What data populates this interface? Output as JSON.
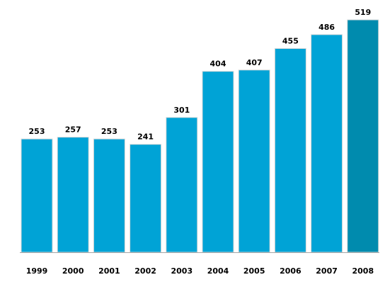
{
  "chart_data": {
    "type": "bar",
    "categories": [
      "1999",
      "2000",
      "2001",
      "2002",
      "2003",
      "2004",
      "2005",
      "2006",
      "2007",
      "2008"
    ],
    "values": [
      253,
      257,
      253,
      241,
      301,
      404,
      407,
      455,
      486,
      519
    ],
    "title": "",
    "xlabel": "",
    "ylabel": "",
    "ylim": [
      0,
      519
    ],
    "grid": false,
    "legend": "none",
    "data_labels": true,
    "colors": {
      "bar": "#00A3D6",
      "bar_highlight": "#008BAE",
      "bar_border": "#d9d9d9",
      "baseline": "#a6a6a6"
    },
    "highlight_category": "2008"
  }
}
